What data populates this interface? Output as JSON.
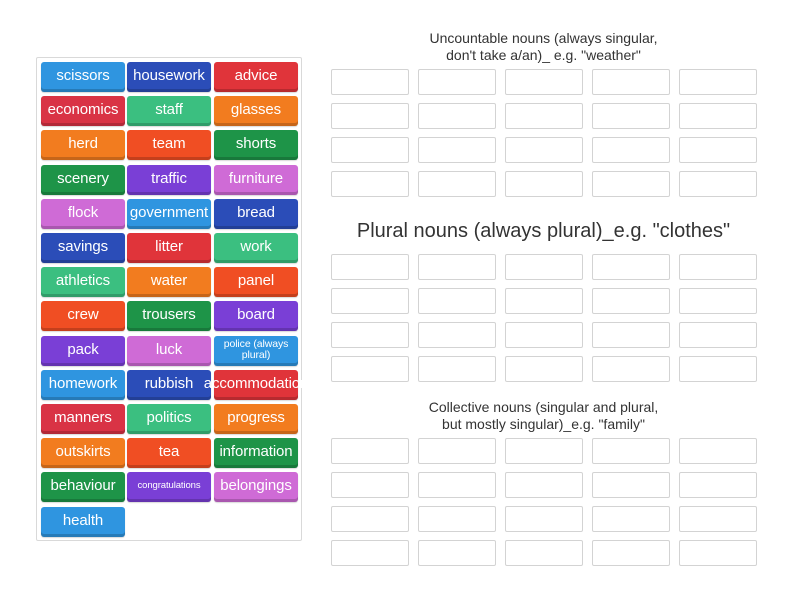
{
  "tiles": [
    {
      "text": "scissors",
      "color": "#2f95e0"
    },
    {
      "text": "housework",
      "color": "#2b4db8"
    },
    {
      "text": "advice",
      "color": "#e0343a"
    },
    {
      "text": "economics",
      "color": "#d93345"
    },
    {
      "text": "staff",
      "color": "#3bbf80"
    },
    {
      "text": "glasses",
      "color": "#f27c1f"
    },
    {
      "text": "herd",
      "color": "#f27c1f"
    },
    {
      "text": "team",
      "color": "#f04e23"
    },
    {
      "text": "shorts",
      "color": "#1e9448"
    },
    {
      "text": "scenery",
      "color": "#1e9448"
    },
    {
      "text": "traffic",
      "color": "#7a3fd6"
    },
    {
      "text": "furniture",
      "color": "#cf6bd6"
    },
    {
      "text": "flock",
      "color": "#cf6bd6"
    },
    {
      "text": "government",
      "color": "#2f95e0"
    },
    {
      "text": "bread",
      "color": "#2b4db8"
    },
    {
      "text": "savings",
      "color": "#2b4db8"
    },
    {
      "text": "litter",
      "color": "#e0343a"
    },
    {
      "text": "work",
      "color": "#3bbf80"
    },
    {
      "text": "athletics",
      "color": "#3bbf80"
    },
    {
      "text": "water",
      "color": "#f27c1f"
    },
    {
      "text": "panel",
      "color": "#f04e23"
    },
    {
      "text": "crew",
      "color": "#f04e23"
    },
    {
      "text": "trousers",
      "color": "#1e9448"
    },
    {
      "text": "board",
      "color": "#7a3fd6"
    },
    {
      "text": "pack",
      "color": "#7a3fd6"
    },
    {
      "text": "luck",
      "color": "#cf6bd6"
    },
    {
      "text": "police (always plural)",
      "color": "#2f95e0"
    },
    {
      "text": "homework",
      "color": "#2f95e0"
    },
    {
      "text": "rubbish",
      "color": "#2b4db8"
    },
    {
      "text": "accommodation",
      "color": "#e0343a"
    },
    {
      "text": "manners",
      "color": "#d93345"
    },
    {
      "text": "politics",
      "color": "#3bbf80"
    },
    {
      "text": "progress",
      "color": "#f27c1f"
    },
    {
      "text": "outskirts",
      "color": "#f27c1f"
    },
    {
      "text": "tea",
      "color": "#f04e23"
    },
    {
      "text": "information",
      "color": "#1e9448"
    },
    {
      "text": "behaviour",
      "color": "#1e9448"
    },
    {
      "text": "congratulations",
      "color": "#7a3fd6"
    },
    {
      "text": "belongings",
      "color": "#cf6bd6"
    },
    {
      "text": "health",
      "color": "#2f95e0"
    }
  ],
  "groups": [
    {
      "title_lines": [
        "Uncountable nouns (always singular,",
        "don't take a/an)_ e.g. \"weather\""
      ]
    },
    {
      "title_lines": [
        "Plural nouns (always plural)_e.g. \"clothes\""
      ]
    },
    {
      "title_lines": [
        "Collective nouns (singular and plural,",
        "but mostly singular)_e.g. \"family\""
      ]
    }
  ]
}
